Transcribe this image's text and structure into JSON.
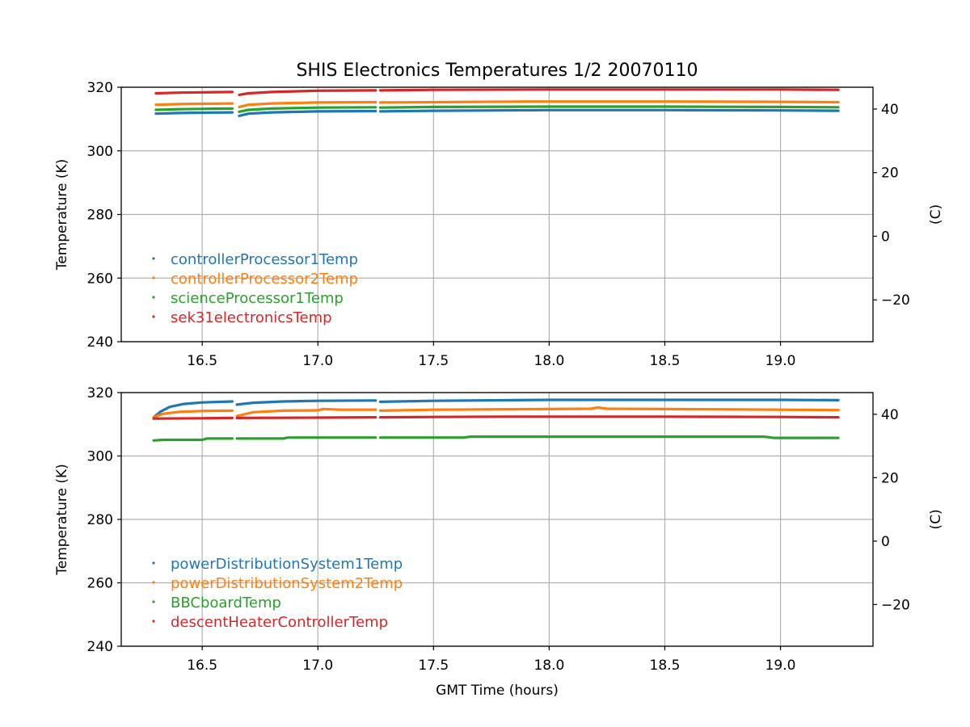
{
  "chart_data": [
    {
      "type": "scatter",
      "title": "SHIS Electronics Temperatures 1/2 20070110",
      "xlabel": "",
      "ylabel": "Temperature (K)",
      "y2label": "(C)",
      "xlim": [
        16.15,
        19.4
      ],
      "ylim": [
        240,
        320
      ],
      "y2lim": [
        -33.15,
        46.85
      ],
      "xticks": [
        "16.5",
        "17.0",
        "17.5",
        "18.0",
        "18.5",
        "19.0"
      ],
      "xtick_values": [
        16.5,
        17.0,
        17.5,
        18.0,
        18.5,
        19.0
      ],
      "yticks": [
        "240",
        "260",
        "280",
        "300",
        "320"
      ],
      "ytick_values": [
        240,
        260,
        280,
        300,
        320
      ],
      "y2ticks": [
        "−20",
        "0",
        "20",
        "40"
      ],
      "y2tick_values": [
        -20,
        0,
        20,
        40
      ],
      "grid": true,
      "legend": "lower-left",
      "series": [
        {
          "name": "controllerProcessor1Temp",
          "color": "#1f77b4",
          "segments": [
            [
              [
                16.3,
                311.7
              ],
              [
                16.4,
                311.9
              ],
              [
                16.5,
                312.0
              ],
              [
                16.63,
                312.1
              ]
            ],
            [
              [
                16.66,
                311.0
              ],
              [
                16.7,
                311.7
              ],
              [
                16.8,
                312.1
              ],
              [
                17.0,
                312.4
              ],
              [
                17.25,
                312.5
              ]
            ],
            [
              [
                17.27,
                312.4
              ],
              [
                17.5,
                312.6
              ],
              [
                18.0,
                312.8
              ],
              [
                18.5,
                312.8
              ],
              [
                19.0,
                312.7
              ],
              [
                19.25,
                312.6
              ]
            ]
          ]
        },
        {
          "name": "controllerProcessor2Temp",
          "color": "#ff7f0e",
          "segments": [
            [
              [
                16.3,
                314.5
              ],
              [
                16.4,
                314.7
              ],
              [
                16.5,
                314.8
              ],
              [
                16.63,
                314.9
              ]
            ],
            [
              [
                16.66,
                313.8
              ],
              [
                16.7,
                314.5
              ],
              [
                16.8,
                314.9
              ],
              [
                17.0,
                315.2
              ],
              [
                17.25,
                315.3
              ]
            ],
            [
              [
                17.27,
                315.2
              ],
              [
                17.5,
                315.3
              ],
              [
                17.9,
                315.5
              ],
              [
                18.5,
                315.5
              ],
              [
                19.0,
                315.4
              ],
              [
                19.25,
                315.3
              ]
            ]
          ]
        },
        {
          "name": "scienceProcessor1Temp",
          "color": "#2ca02c",
          "segments": [
            [
              [
                16.3,
                312.9
              ],
              [
                16.4,
                313.1
              ],
              [
                16.5,
                313.2
              ],
              [
                16.63,
                313.3
              ]
            ],
            [
              [
                16.66,
                312.3
              ],
              [
                16.7,
                312.9
              ],
              [
                16.8,
                313.3
              ],
              [
                17.0,
                313.6
              ],
              [
                17.25,
                313.7
              ]
            ],
            [
              [
                17.27,
                313.6
              ],
              [
                17.5,
                313.8
              ],
              [
                18.0,
                313.9
              ],
              [
                18.5,
                313.9
              ],
              [
                19.0,
                313.8
              ],
              [
                19.25,
                313.7
              ]
            ]
          ]
        },
        {
          "name": "sek31electronicsTemp",
          "color": "#d62728",
          "segments": [
            [
              [
                16.3,
                318.1
              ],
              [
                16.4,
                318.3
              ],
              [
                16.5,
                318.4
              ],
              [
                16.63,
                318.5
              ]
            ],
            [
              [
                16.66,
                317.6
              ],
              [
                16.7,
                318.1
              ],
              [
                16.8,
                318.5
              ],
              [
                17.0,
                318.9
              ],
              [
                17.25,
                319.0
              ]
            ],
            [
              [
                17.27,
                319.0
              ],
              [
                17.5,
                319.2
              ],
              [
                18.0,
                319.3
              ],
              [
                18.5,
                319.3
              ],
              [
                19.0,
                319.3
              ],
              [
                19.25,
                319.2
              ]
            ]
          ]
        }
      ]
    },
    {
      "type": "scatter",
      "title": "",
      "xlabel": "GMT Time (hours)",
      "ylabel": "Temperature (K)",
      "y2label": "(C)",
      "xlim": [
        16.15,
        19.4
      ],
      "ylim": [
        240,
        320
      ],
      "y2lim": [
        -33.15,
        46.85
      ],
      "xticks": [
        "16.5",
        "17.0",
        "17.5",
        "18.0",
        "18.5",
        "19.0"
      ],
      "xtick_values": [
        16.5,
        17.0,
        17.5,
        18.0,
        18.5,
        19.0
      ],
      "yticks": [
        "240",
        "260",
        "280",
        "300",
        "320"
      ],
      "ytick_values": [
        240,
        260,
        280,
        300,
        320
      ],
      "y2ticks": [
        "−20",
        "0",
        "20",
        "40"
      ],
      "y2tick_values": [
        -20,
        0,
        20,
        40
      ],
      "grid": true,
      "legend": "lower-left",
      "series": [
        {
          "name": "powerDistributionSystem1Temp",
          "color": "#1f77b4",
          "segments": [
            [
              [
                16.29,
                312.2
              ],
              [
                16.32,
                314.0
              ],
              [
                16.36,
                315.5
              ],
              [
                16.42,
                316.4
              ],
              [
                16.5,
                316.9
              ],
              [
                16.63,
                317.2
              ]
            ],
            [
              [
                16.65,
                316.2
              ],
              [
                16.72,
                316.8
              ],
              [
                16.85,
                317.2
              ],
              [
                17.0,
                317.4
              ],
              [
                17.25,
                317.5
              ]
            ],
            [
              [
                17.27,
                317.1
              ],
              [
                17.5,
                317.4
              ],
              [
                18.0,
                317.7
              ],
              [
                18.5,
                317.7
              ],
              [
                19.0,
                317.7
              ],
              [
                19.25,
                317.6
              ]
            ]
          ]
        },
        {
          "name": "powerDistributionSystem2Temp",
          "color": "#ff7f0e",
          "segments": [
            [
              [
                16.29,
                312.2
              ],
              [
                16.33,
                313.3
              ],
              [
                16.4,
                313.9
              ],
              [
                16.5,
                314.2
              ],
              [
                16.63,
                314.3
              ]
            ],
            [
              [
                16.65,
                312.6
              ],
              [
                16.72,
                313.8
              ],
              [
                16.85,
                314.3
              ],
              [
                17.0,
                314.4
              ],
              [
                17.02,
                314.8
              ],
              [
                17.1,
                314.6
              ],
              [
                17.25,
                314.6
              ]
            ],
            [
              [
                17.27,
                314.3
              ],
              [
                17.5,
                314.6
              ],
              [
                18.0,
                314.8
              ],
              [
                18.18,
                314.9
              ],
              [
                18.21,
                315.3
              ],
              [
                18.25,
                314.9
              ],
              [
                18.5,
                314.8
              ],
              [
                19.0,
                314.6
              ],
              [
                19.25,
                314.5
              ]
            ]
          ]
        },
        {
          "name": "BBCboardTemp",
          "color": "#2ca02c",
          "segments": [
            [
              [
                16.29,
                304.9
              ],
              [
                16.33,
                305.1
              ],
              [
                16.5,
                305.1
              ],
              [
                16.52,
                305.5
              ],
              [
                16.63,
                305.5
              ]
            ],
            [
              [
                16.65,
                305.5
              ],
              [
                16.85,
                305.5
              ],
              [
                16.87,
                305.8
              ],
              [
                17.25,
                305.8
              ]
            ],
            [
              [
                17.27,
                305.8
              ],
              [
                17.63,
                305.8
              ],
              [
                17.66,
                306.1
              ],
              [
                18.0,
                306.1
              ],
              [
                18.5,
                306.1
              ],
              [
                18.93,
                306.1
              ],
              [
                18.97,
                305.7
              ],
              [
                19.25,
                305.7
              ]
            ]
          ]
        },
        {
          "name": "descentHeaterControllerTemp",
          "color": "#d62728",
          "segments": [
            [
              [
                16.29,
                311.8
              ],
              [
                16.5,
                311.9
              ],
              [
                16.63,
                312.0
              ]
            ],
            [
              [
                16.65,
                312.0
              ],
              [
                17.0,
                312.1
              ],
              [
                17.25,
                312.2
              ]
            ],
            [
              [
                17.27,
                312.2
              ],
              [
                17.5,
                312.3
              ],
              [
                17.8,
                312.4
              ],
              [
                18.5,
                312.4
              ],
              [
                19.0,
                312.3
              ],
              [
                19.25,
                312.2
              ]
            ]
          ]
        }
      ]
    }
  ]
}
